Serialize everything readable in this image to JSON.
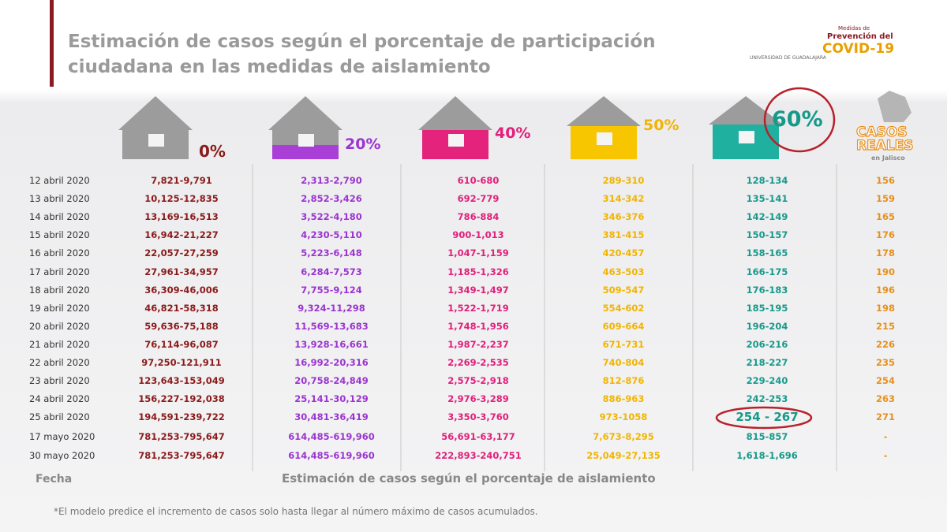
{
  "header": {
    "title_line1": "Estimación de casos según el porcentaje de participación",
    "title_line2": "ciudadana en las medidas de aislamiento",
    "logo1": "UNIVERSIDAD DE GUADALAJARA",
    "logo2_line1": "Medidas de",
    "logo2_line2": "Prevención del",
    "logo2_line3": "COVID-19"
  },
  "columns": [
    "0%",
    "20%",
    "40%",
    "50%",
    "60%"
  ],
  "real_cases": {
    "title_line1": "CASOS",
    "title_line2": "REALES",
    "subtitle": "en Jalisco"
  },
  "table": {
    "rows": [
      [
        "12 abril 2020",
        "7,821-9,791",
        "2,313-2,790",
        "610-680",
        "289-310",
        "128-134",
        "156"
      ],
      [
        "13 abril 2020",
        "10,125-12,835",
        "2,852-3,426",
        "692-779",
        "314-342",
        "135-141",
        "159"
      ],
      [
        "14 abril 2020",
        "13,169-16,513",
        "3,522-4,180",
        "786-884",
        "346-376",
        "142-149",
        "165"
      ],
      [
        "15 abril 2020",
        "16,942-21,227",
        "4,230-5,110",
        "900-1,013",
        "381-415",
        "150-157",
        "176"
      ],
      [
        "16 abril 2020",
        "22,057-27,259",
        "5,223-6,148",
        "1,047-1,159",
        "420-457",
        "158-165",
        "178"
      ],
      [
        "17 abril 2020",
        "27,961-34,957",
        "6,284-7,573",
        "1,185-1,326",
        "463-503",
        "166-175",
        "190"
      ],
      [
        "18 abril 2020",
        "36,309-46,006",
        "7,755-9,124",
        "1,349-1,497",
        "509-547",
        "176-183",
        "196"
      ],
      [
        "19 abril 2020",
        "46,821-58,318",
        "9,324-11,298",
        "1,522-1,719",
        "554-602",
        "185-195",
        "198"
      ],
      [
        "20 abril 2020",
        "59,636-75,188",
        "11,569-13,683",
        "1,748-1,956",
        "609-664",
        "196-204",
        "215"
      ],
      [
        "21 abril 2020",
        "76,114-96,087",
        "13,928-16,661",
        "1,987-2,237",
        "671-731",
        "206-216",
        "226"
      ],
      [
        "22 abril 2020",
        "97,250-121,911",
        "16,992-20,316",
        "2,269-2,535",
        "740-804",
        "218-227",
        "235"
      ],
      [
        "23 abril 2020",
        "123,643-153,049",
        "20,758-24,849",
        "2,575-2,918",
        "812-876",
        "229-240",
        "254"
      ],
      [
        "24 abril 2020",
        "156,227-192,038",
        "25,141-30,129",
        "2,976-3,289",
        "886-963",
        "242-253",
        "263"
      ],
      [
        "25 abril 2020",
        "194,591-239,722",
        "30,481-36,419",
        "3,350-3,760",
        "973-1058",
        "254 - 267",
        "271"
      ],
      [
        "17 mayo 2020",
        "781,253-795,647",
        "614,485-619,960",
        "56,691-63,177",
        "7,673-8,295",
        "815-857",
        "-"
      ],
      [
        "30 mayo 2020",
        "781,253-795,647",
        "614,485-619,960",
        "222,893-240,751",
        "25,049-27,135",
        "1,618-1,696",
        "-"
      ]
    ]
  },
  "footer": {
    "date_label": "Fecha",
    "axis_label": "Estimación de casos según el porcentaje de aislamiento",
    "note": "*El modelo predice el incremento de casos solo hasta llegar al número máximo de casos acumulados."
  }
}
